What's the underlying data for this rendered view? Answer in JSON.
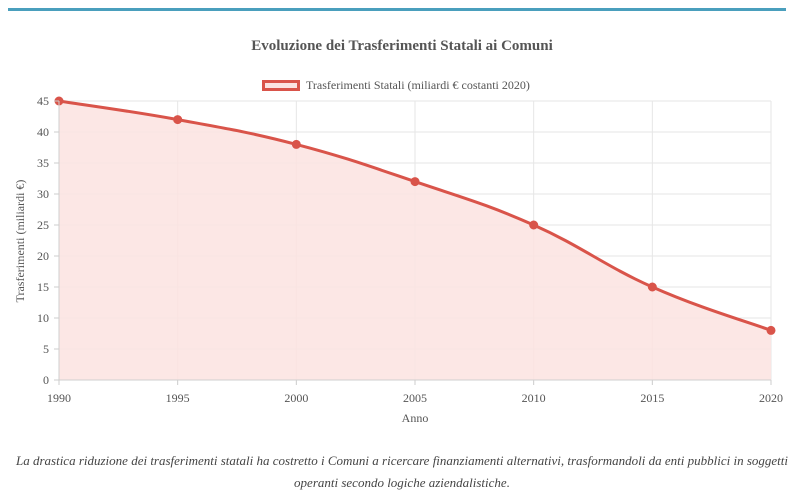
{
  "chart_data": {
    "type": "line",
    "title": "Evoluzione dei Trasferimenti Statali ai Comuni",
    "xlabel": "Anno",
    "ylabel": "Trasferimenti (miliardi €)",
    "x": [
      1990,
      1995,
      2000,
      2005,
      2010,
      2015,
      2020
    ],
    "series": [
      {
        "name": "Trasferimenti Statali (miliardi € costanti 2020)",
        "values": [
          45,
          42,
          38,
          32,
          25,
          15,
          8
        ]
      }
    ],
    "xlim": [
      1990,
      2020
    ],
    "ylim": [
      0,
      45
    ],
    "yticks": [
      0,
      5,
      10,
      15,
      20,
      25,
      30,
      35,
      40,
      45
    ],
    "xticks": [
      1990,
      1995,
      2000,
      2005,
      2010,
      2015,
      2020
    ],
    "grid": true,
    "legend_position": "top",
    "fill": true,
    "colors": {
      "line": "#d9544a",
      "fill": "#fbe3e1",
      "grid": "#e6e6e6"
    }
  },
  "caption": "La drastica riduzione dei trasferimenti statali ha costretto i Comuni a ricercare finanziamenti alternativi, trasformandoli da enti pubblici in soggetti operanti secondo logiche aziendalistiche."
}
